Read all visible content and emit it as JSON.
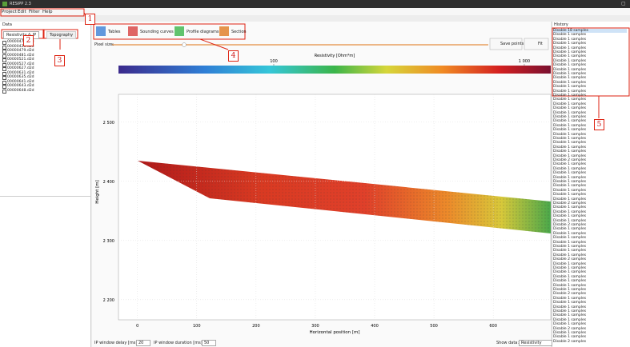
{
  "window": {
    "title": "RESIPP 2.3",
    "menu": [
      "Project",
      "Edit",
      "Filter",
      "Help"
    ]
  },
  "data_panel": {
    "title": "Data",
    "tabs": [
      "Resistivity & IP",
      "Topography"
    ],
    "files": [
      "00000471.d2d",
      "00000421.d2d",
      "00000479.d2d",
      "00000481.d2d",
      "00000521.d2d",
      "00000527.d2d",
      "00000627.d2d",
      "00000631.d2d",
      "00000635.d2d",
      "00000641.d2d",
      "00000643.d2d",
      "00000648.d2d"
    ]
  },
  "toolbar": {
    "tabs": [
      "Tables",
      "Sounding curves",
      "Profile diagrams",
      "Section"
    ],
    "pixel_size_label": "Pixel size:",
    "buttons": [
      "Save points",
      "Fit"
    ]
  },
  "colorbar": {
    "title": "Resistivity [Ohm*m]",
    "lim": [
      24,
      1275
    ],
    "ticks": [
      100,
      {
        "value": 1000,
        "label": "1 000"
      }
    ]
  },
  "section": {
    "x_label": "Horizontal position [m]",
    "y_label": "Height [m]",
    "xlim": [
      -32,
      697
    ],
    "ylim": [
      2166,
      2547
    ],
    "xticks": [
      0,
      100,
      200,
      300,
      400,
      500,
      600
    ],
    "yticks": [
      {
        "value": 2200,
        "label": "2 200"
      },
      {
        "value": 2300,
        "label": "2 300"
      },
      {
        "value": 2400,
        "label": "2 400"
      },
      {
        "value": 2500,
        "label": "2 500"
      }
    ]
  },
  "status": {
    "ip_delay_label": "IP window delay [ms]:",
    "ip_delay": 20,
    "ip_duration_label": "IP window duration [ms]:",
    "ip_duration": 50,
    "show_data_label": "Show data:",
    "show_data": "Resistivity"
  },
  "history": {
    "title": "History",
    "items": [
      "Disable 18 samples",
      "Disable 1 samples",
      "Disable 1 samples",
      "Disable 1 samples",
      "Disable 1 samples",
      "Disable 1 samples",
      "Disable 1 samples",
      "Disable 1 samples",
      "Disable 1 samples",
      "Disable 1 samples",
      "Disable 1 samples",
      "Disable 1 samples",
      "Disable 1 samples",
      "Disable 1 samples",
      "Disable 1 samples",
      "Disable 1 samples",
      "Disable 1 samples",
      "Disable 1 samples",
      "Disable 1 samples",
      "Disable 1 samples",
      "Disable 1 samples",
      "Disable 1 samples",
      "Disable 1 samples",
      "Disable 1 samples",
      "Disable 1 samples",
      "Disable 1 samples",
      "Disable 1 samples",
      "Disable 1 samples",
      "Disable 1 samples",
      "Disable 1 samples",
      "Disable 2 samples",
      "Disable 1 samples",
      "Disable 1 samples",
      "Disable 1 samples",
      "Disable 1 samples",
      "Disable 1 samples",
      "Disable 1 samples",
      "Disable 1 samples",
      "Disable 1 samples",
      "Disable 1 samples",
      "Disable 2 samples",
      "Disable 1 samples",
      "Disable 1 samples",
      "Disable 1 samples",
      "Disable 1 samples",
      "Disable 2 samples",
      "Disable 1 samples",
      "Disable 1 samples",
      "Disable 1 samples",
      "Disable 1 samples",
      "Disable 1 samples",
      "Disable 1 samples",
      "Disable 1 samples",
      "Disable 2 samples",
      "Disable 1 samples",
      "Disable 1 samples",
      "Disable 1 samples",
      "Disable 1 samples",
      "Disable 1 samples",
      "Disable 1 samples",
      "Disable 1 samples",
      "Disable 2 samples",
      "Disable 1 samples",
      "Disable 1 samples",
      "Disable 1 samples",
      "Disable 1 samples",
      "Disable 1 samples",
      "Disable 1 samples",
      "Disable 1 samples",
      "Disable 2 samples",
      "Disable 1 samples",
      "Disable 1 samples",
      "Disable 2 samples"
    ]
  },
  "annotations": [
    "1",
    "2",
    "3",
    "4",
    "5"
  ]
}
